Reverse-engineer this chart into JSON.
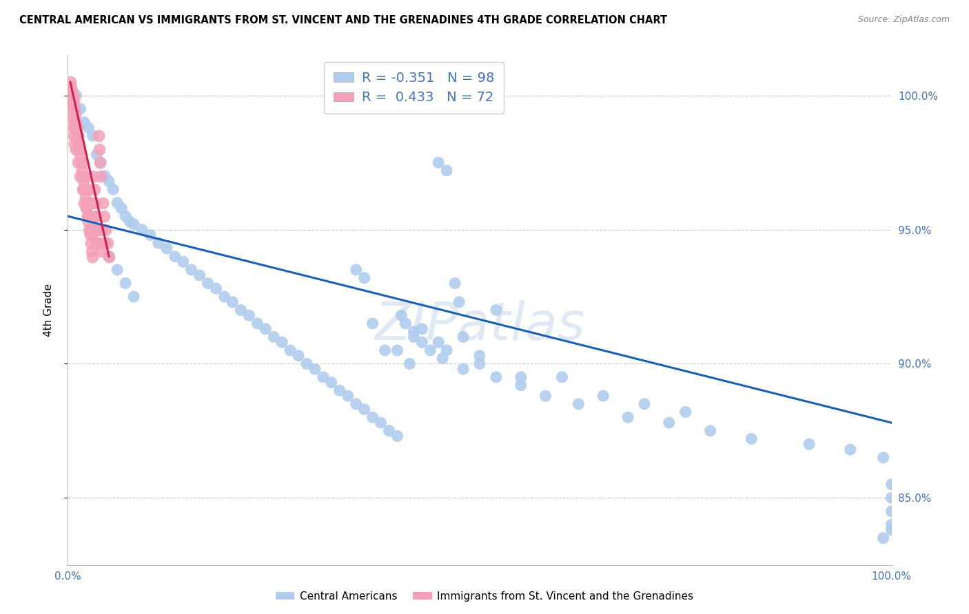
{
  "title": "CENTRAL AMERICAN VS IMMIGRANTS FROM ST. VINCENT AND THE GRENADINES 4TH GRADE CORRELATION CHART",
  "source": "Source: ZipAtlas.com",
  "ylabel": "4th Grade",
  "xmin": 0.0,
  "xmax": 100.0,
  "ymin": 82.5,
  "ymax": 101.5,
  "yticks": [
    85.0,
    90.0,
    95.0,
    100.0
  ],
  "xtick_labels": [
    "0.0%",
    "",
    "",
    "",
    "",
    "100.0%"
  ],
  "xtick_positions": [
    0,
    20,
    40,
    60,
    80,
    100
  ],
  "blue_R": -0.351,
  "blue_N": 98,
  "pink_R": 0.433,
  "pink_N": 72,
  "blue_color": "#b0ccee",
  "pink_color": "#f4a0b8",
  "blue_line_color": "#1a5fb4",
  "pink_line_color": "#cc2255",
  "label_color": "#4472c4",
  "watermark": "ZIPatlas",
  "watermark_color": "#c0d4ec",
  "blue_trend_x": [
    0.0,
    100.0
  ],
  "blue_trend_y": [
    95.5,
    87.8
  ],
  "pink_trend_x": [
    0.3,
    5.0
  ],
  "pink_trend_y": [
    100.5,
    94.0
  ],
  "blue_scatter_x": [
    1.0,
    1.5,
    2.0,
    2.5,
    3.0,
    3.5,
    4.0,
    4.5,
    5.0,
    5.5,
    6.0,
    6.5,
    7.0,
    7.5,
    8.0,
    9.0,
    10.0,
    11.0,
    12.0,
    13.0,
    14.0,
    15.0,
    16.0,
    17.0,
    18.0,
    19.0,
    20.0,
    21.0,
    22.0,
    23.0,
    24.0,
    25.0,
    26.0,
    27.0,
    28.0,
    29.0,
    30.0,
    31.0,
    32.0,
    33.0,
    34.0,
    35.0,
    36.0,
    37.0,
    38.0,
    39.0,
    40.0,
    41.0,
    42.0,
    43.0,
    44.0,
    45.0,
    46.0,
    47.0,
    48.0,
    50.0,
    37.0,
    38.5,
    40.5,
    45.5,
    47.5,
    52.0,
    55.0,
    40.0,
    41.5,
    48.0,
    60.0,
    65.0,
    70.0,
    75.0,
    99.0,
    100.0,
    100.0,
    100.0,
    100.0,
    100.0,
    3.0,
    4.0,
    5.0,
    6.0,
    7.0,
    8.0,
    35.0,
    36.0,
    42.0,
    43.0,
    45.0,
    46.0,
    50.0,
    52.0,
    55.0,
    58.0,
    62.0,
    68.0,
    73.0,
    78.0,
    83.0,
    90.0,
    95.0,
    99.0
  ],
  "blue_scatter_y": [
    100.0,
    99.5,
    99.0,
    98.8,
    98.5,
    97.8,
    97.5,
    97.0,
    96.8,
    96.5,
    96.0,
    95.8,
    95.5,
    95.3,
    95.2,
    95.0,
    94.8,
    94.5,
    94.3,
    94.0,
    93.8,
    93.5,
    93.3,
    93.0,
    92.8,
    92.5,
    92.3,
    92.0,
    91.8,
    91.5,
    91.3,
    91.0,
    90.8,
    90.5,
    90.3,
    90.0,
    89.8,
    89.5,
    89.3,
    89.0,
    88.8,
    88.5,
    88.3,
    88.0,
    87.8,
    87.5,
    87.3,
    91.5,
    91.2,
    90.8,
    90.5,
    97.5,
    97.2,
    93.0,
    91.0,
    90.3,
    91.5,
    90.5,
    91.8,
    90.2,
    92.3,
    92.0,
    89.5,
    90.5,
    90.0,
    89.8,
    89.5,
    88.8,
    88.5,
    88.2,
    83.5,
    83.8,
    84.0,
    84.5,
    85.0,
    85.5,
    95.0,
    94.5,
    94.0,
    93.5,
    93.0,
    92.5,
    93.5,
    93.2,
    91.0,
    91.3,
    90.8,
    90.5,
    90.0,
    89.5,
    89.2,
    88.8,
    88.5,
    88.0,
    87.8,
    87.5,
    87.2,
    87.0,
    86.8,
    86.5
  ],
  "pink_scatter_x": [
    0.3,
    0.4,
    0.5,
    0.6,
    0.7,
    0.8,
    0.9,
    1.0,
    1.1,
    1.2,
    1.3,
    1.4,
    1.5,
    1.6,
    1.7,
    1.8,
    1.9,
    2.0,
    2.1,
    2.2,
    2.3,
    2.4,
    2.5,
    2.6,
    2.7,
    2.8,
    2.9,
    3.0,
    3.1,
    3.2,
    3.3,
    3.4,
    3.5,
    3.6,
    3.7,
    3.8,
    3.9,
    4.0,
    4.2,
    4.4,
    4.6,
    4.8,
    5.0,
    0.5,
    0.6,
    0.7,
    0.8,
    1.0,
    1.2,
    1.5,
    1.8,
    2.0,
    2.2,
    2.5,
    2.8,
    3.0,
    3.5,
    4.0,
    0.4,
    0.5,
    0.6,
    0.8,
    1.0,
    1.2,
    1.5,
    1.8,
    2.0,
    2.5,
    3.0,
    3.5,
    4.0,
    4.5
  ],
  "pink_scatter_y": [
    100.5,
    100.3,
    100.2,
    100.0,
    99.8,
    99.5,
    99.3,
    99.0,
    98.8,
    98.5,
    98.2,
    98.0,
    97.8,
    97.5,
    97.2,
    97.0,
    96.8,
    96.5,
    96.2,
    96.0,
    95.8,
    95.5,
    95.3,
    95.0,
    94.8,
    94.5,
    94.2,
    94.0,
    97.0,
    96.5,
    96.0,
    95.5,
    95.0,
    94.5,
    98.5,
    98.0,
    97.5,
    97.0,
    96.0,
    95.5,
    95.0,
    94.5,
    94.0,
    99.2,
    98.8,
    98.5,
    98.2,
    98.0,
    97.5,
    97.0,
    96.5,
    96.0,
    95.8,
    95.5,
    95.0,
    94.8,
    94.5,
    94.2,
    100.0,
    99.8,
    99.5,
    99.0,
    98.8,
    98.5,
    98.0,
    97.5,
    97.0,
    96.5,
    96.0,
    95.5,
    95.0,
    94.5
  ]
}
